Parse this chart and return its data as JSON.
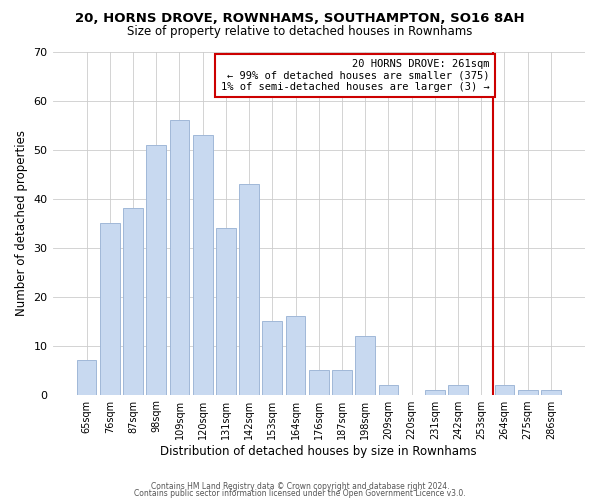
{
  "title": "20, HORNS DROVE, ROWNHAMS, SOUTHAMPTON, SO16 8AH",
  "subtitle": "Size of property relative to detached houses in Rownhams",
  "xlabel": "Distribution of detached houses by size in Rownhams",
  "ylabel": "Number of detached properties",
  "bar_labels": [
    "65sqm",
    "76sqm",
    "87sqm",
    "98sqm",
    "109sqm",
    "120sqm",
    "131sqm",
    "142sqm",
    "153sqm",
    "164sqm",
    "176sqm",
    "187sqm",
    "198sqm",
    "209sqm",
    "220sqm",
    "231sqm",
    "242sqm",
    "253sqm",
    "264sqm",
    "275sqm",
    "286sqm"
  ],
  "bar_values": [
    7,
    35,
    38,
    51,
    56,
    53,
    34,
    43,
    15,
    16,
    5,
    5,
    12,
    2,
    0,
    1,
    2,
    0,
    2,
    1,
    1
  ],
  "bar_color": "#c8d9f0",
  "bar_edge_color": "#a0b8d8",
  "vline_color": "#cc0000",
  "annotation_title": "20 HORNS DROVE: 261sqm",
  "annotation_line1": "← 99% of detached houses are smaller (375)",
  "annotation_line2": "1% of semi-detached houses are larger (3) →",
  "annotation_box_edge": "#cc0000",
  "ylim": [
    0,
    70
  ],
  "yticks": [
    0,
    10,
    20,
    30,
    40,
    50,
    60,
    70
  ],
  "footer1": "Contains HM Land Registry data © Crown copyright and database right 2024.",
  "footer2": "Contains public sector information licensed under the Open Government Licence v3.0."
}
